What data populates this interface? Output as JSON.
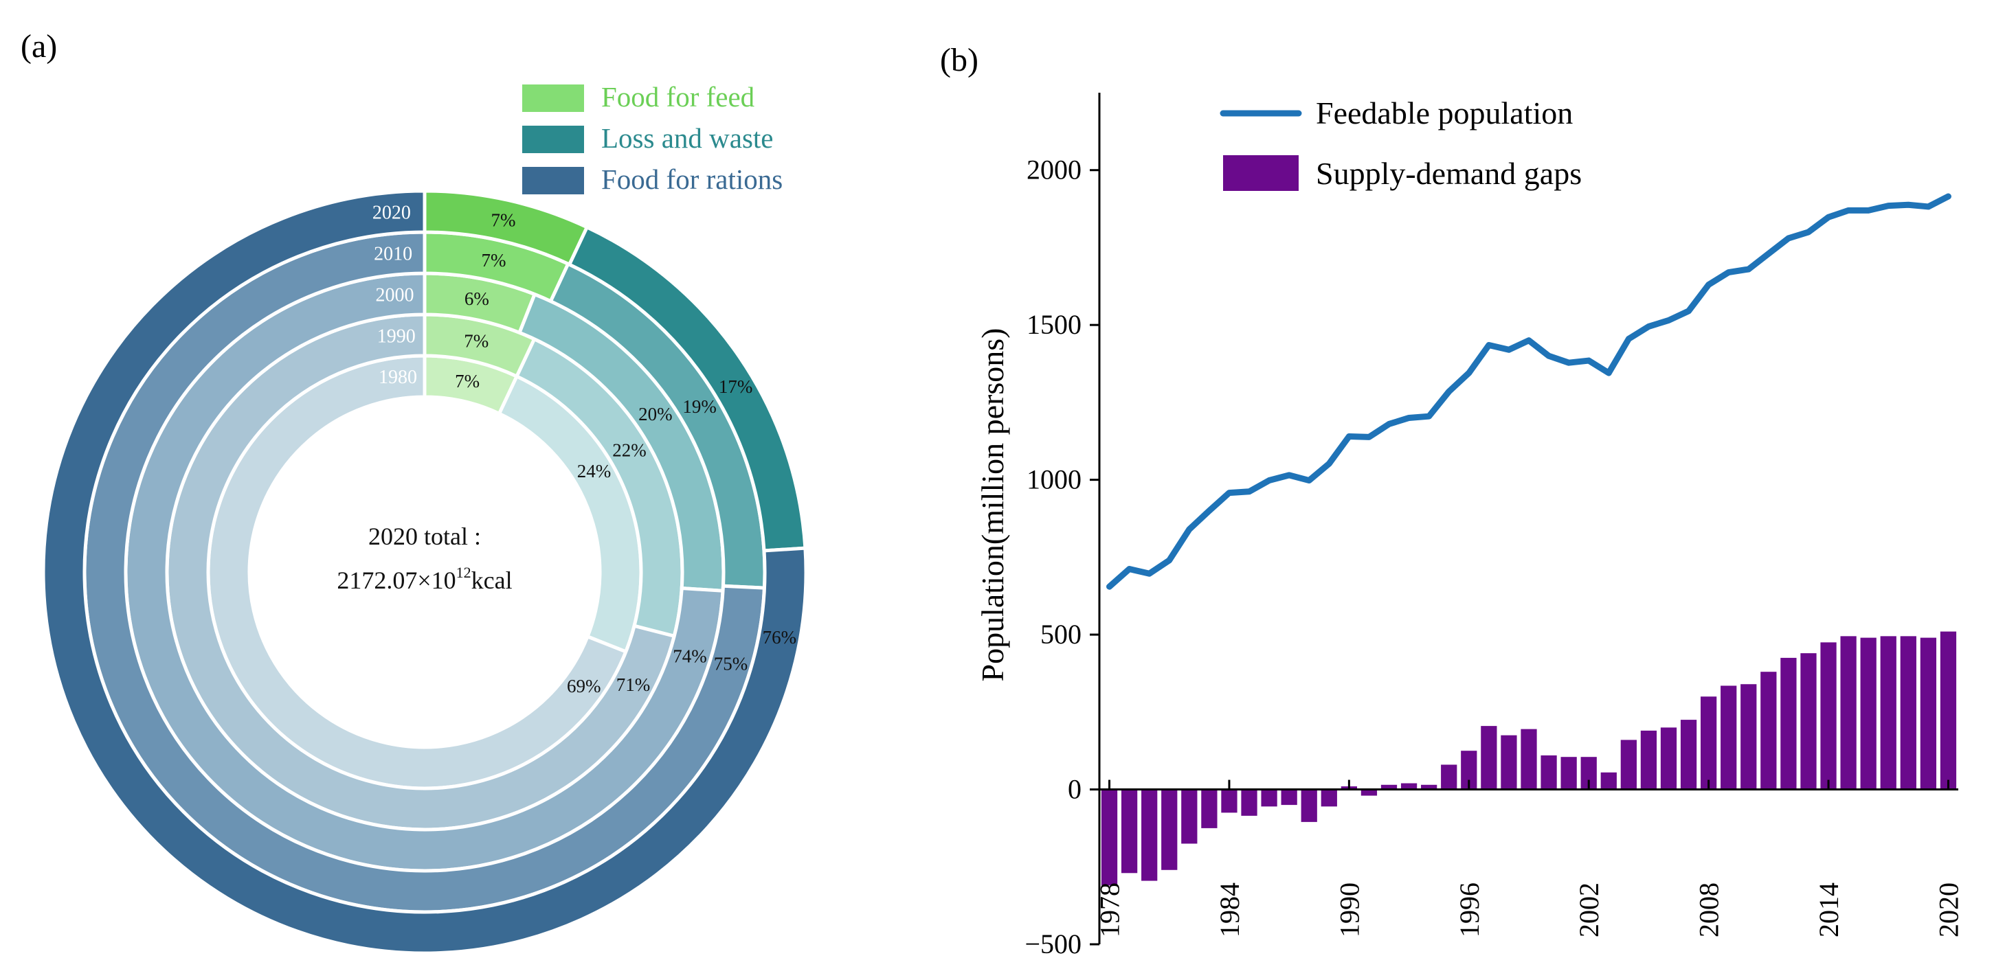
{
  "panels": {
    "a": "(a)",
    "b": "(b)"
  },
  "colors": {
    "feed": [
      "#c9f0bf",
      "#b3eaa6",
      "#9ce48d",
      "#84dd74",
      "#6bcf56"
    ],
    "loss": [
      "#c8e4e6",
      "#a7d3d6",
      "#86c1c5",
      "#5ea9ae",
      "#2b8a8e"
    ],
    "ration": [
      "#c5d9e3",
      "#aac5d5",
      "#8fb1c8",
      "#6b93b3",
      "#3a6a93"
    ],
    "line": "#1f73b7",
    "bar": "#6a0a8c"
  },
  "chart_data": [
    {
      "type": "pie",
      "variant": "nested-donut",
      "title": "",
      "center_text": {
        "line1": "2020 total :",
        "line2_value": "2172.07×10",
        "line2_sup": "12",
        "line2_unit": "kcal"
      },
      "legend": [
        "Food for feed",
        "Loss and waste",
        "Food for rations"
      ],
      "legend_position": "top-right",
      "rings": [
        {
          "year": "1980",
          "values": [
            7,
            24,
            69
          ],
          "labels": [
            "7%",
            "24%",
            "69%"
          ]
        },
        {
          "year": "1990",
          "values": [
            7,
            22,
            71
          ],
          "labels": [
            "7%",
            "22%",
            "71%"
          ]
        },
        {
          "year": "2000",
          "values": [
            6,
            20,
            74
          ],
          "labels": [
            "6%",
            "20%",
            "74%"
          ]
        },
        {
          "year": "2010",
          "values": [
            7,
            19,
            75
          ],
          "labels": [
            "7%",
            "19%",
            "75%"
          ]
        },
        {
          "year": "2020",
          "values": [
            7,
            17,
            76
          ],
          "labels": [
            "7%",
            "17%",
            "76%"
          ]
        }
      ]
    },
    {
      "type": "bar",
      "combo": "bar+line",
      "title": "",
      "ylabel": "Population(million persons)",
      "xlabel": "",
      "ylim": [
        -500,
        2250
      ],
      "yticks": [
        -500,
        0,
        500,
        1000,
        1500,
        2000
      ],
      "xticks": [
        1978,
        1984,
        1990,
        1996,
        2002,
        2008,
        2014,
        2020
      ],
      "xlim": [
        1977.5,
        2020.5
      ],
      "legend_position": "top-left",
      "x": [
        1978,
        1979,
        1980,
        1981,
        1982,
        1983,
        1984,
        1985,
        1986,
        1987,
        1988,
        1989,
        1990,
        1991,
        1992,
        1993,
        1994,
        1995,
        1996,
        1997,
        1998,
        1999,
        2000,
        2001,
        2002,
        2003,
        2004,
        2005,
        2006,
        2007,
        2008,
        2009,
        2010,
        2011,
        2012,
        2013,
        2014,
        2015,
        2016,
        2017,
        2018,
        2019,
        2020
      ],
      "series": [
        {
          "name": "Feedable population",
          "kind": "line",
          "values": [
            655,
            712,
            697,
            740,
            840,
            900,
            958,
            962,
            998,
            1015,
            998,
            1052,
            1140,
            1138,
            1180,
            1200,
            1205,
            1285,
            1345,
            1435,
            1420,
            1450,
            1400,
            1378,
            1385,
            1345,
            1455,
            1495,
            1515,
            1545,
            1630,
            1670,
            1680,
            1730,
            1780,
            1800,
            1848,
            1870,
            1870,
            1885,
            1888,
            1882,
            1915
          ]
        },
        {
          "name": "Supply-demand gaps",
          "kind": "bar",
          "values": [
            -310,
            -270,
            -295,
            -260,
            -175,
            -125,
            -75,
            -85,
            -55,
            -50,
            -105,
            -55,
            10,
            -20,
            15,
            20,
            15,
            80,
            125,
            205,
            175,
            195,
            110,
            105,
            105,
            55,
            160,
            190,
            200,
            225,
            300,
            335,
            340,
            380,
            425,
            440,
            475,
            495,
            490,
            495,
            495,
            490,
            510
          ]
        }
      ]
    }
  ]
}
